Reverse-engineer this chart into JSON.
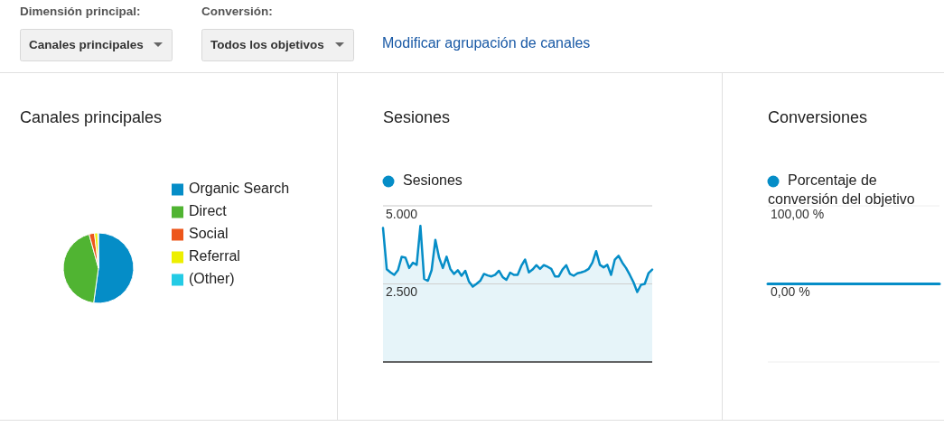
{
  "chart_data": [
    {
      "type": "other",
      "annotations": [
        "Dimensión principal:",
        "Canales principales",
        "Conversión:",
        "Todos los objetivos",
        "Modificar agrupación de canales"
      ]
    },
    {
      "type": "pie",
      "title": "Canales principales",
      "categories": [
        "Organic Search",
        "Direct",
        "Social",
        "Referral",
        "(Other)"
      ],
      "values": [
        52.2,
        43.5,
        2.5,
        1.5,
        0.3
      ],
      "colors": [
        "#058dc7",
        "#50b432",
        "#ed561b",
        "#edef00",
        "#24cbe5"
      ],
      "legend": "right"
    },
    {
      "type": "area",
      "title": "Sesiones",
      "categories": [
        null,
        null,
        null,
        null,
        null,
        null,
        null,
        null,
        null,
        null,
        null,
        null,
        null,
        null,
        null,
        null,
        null,
        null,
        null,
        null,
        null,
        null,
        null,
        null,
        null,
        null,
        null,
        null,
        null,
        null,
        null,
        null,
        null,
        null,
        null,
        null,
        null,
        null,
        null,
        null,
        null,
        null,
        null,
        null,
        null,
        null,
        null,
        null,
        null,
        null,
        null,
        null,
        null,
        null,
        null,
        null,
        null,
        null,
        null,
        null,
        null,
        null,
        null,
        null,
        null,
        null,
        null,
        null,
        null,
        null,
        null,
        null,
        null
      ],
      "series": [
        {
          "name": "Sesiones",
          "color": "#058dc7",
          "values": [
            4290,
            2970,
            2870,
            2790,
            2940,
            3370,
            3340,
            3010,
            3180,
            3110,
            4360,
            2660,
            2600,
            2940,
            3910,
            3340,
            3010,
            3370,
            2980,
            2820,
            2940,
            2760,
            2920,
            2570,
            2410,
            2500,
            2600,
            2820,
            2770,
            2740,
            2790,
            2920,
            2720,
            2630,
            2860,
            2790,
            2790,
            3080,
            3280,
            2870,
            2960,
            3100,
            2980,
            3100,
            3050,
            2980,
            2740,
            2740,
            2960,
            3100,
            2820,
            2760,
            2840,
            2870,
            2910,
            2980,
            3180,
            3550,
            3110,
            3030,
            3110,
            2790,
            3280,
            3400,
            3180,
            3010,
            2790,
            2550,
            2240,
            2470,
            2500,
            2840,
            2960
          ]
        }
      ],
      "ylim": [
        0,
        5000
      ],
      "yticks": [
        {
          "value": 2500,
          "label": "2.500"
        },
        {
          "value": 5000,
          "label": "5.000"
        }
      ],
      "grid": true,
      "legend": "top left",
      "tick_labels": "y"
    },
    {
      "type": "line",
      "title": "Conversiones",
      "categories": [
        null,
        null,
        null,
        null,
        null,
        null,
        null,
        null,
        null,
        null,
        null,
        null,
        null,
        null,
        null,
        null,
        null,
        null,
        null,
        null,
        null,
        null,
        null,
        null,
        null,
        null,
        null,
        null,
        null,
        null,
        null,
        null,
        null,
        null,
        null,
        null,
        null,
        null,
        null,
        null,
        null,
        null,
        null,
        null,
        null,
        null,
        null,
        null,
        null,
        null,
        null,
        null,
        null,
        null,
        null,
        null,
        null,
        null,
        null,
        null,
        null,
        null,
        null,
        null,
        null,
        null,
        null,
        null,
        null,
        null,
        null,
        null,
        null
      ],
      "series": [
        {
          "name": "Porcentaje de conversión del objetivo",
          "color": "#058dc7",
          "values": [
            0,
            0,
            0,
            0,
            0,
            0,
            0,
            0,
            0,
            0,
            0,
            0,
            0,
            0,
            0,
            0,
            0,
            0,
            0,
            0,
            0,
            0,
            0,
            0,
            0,
            0,
            0,
            0,
            0,
            0,
            0,
            0,
            0,
            0,
            0,
            0,
            0,
            0,
            0,
            0,
            0,
            0,
            0,
            0,
            0,
            0,
            0,
            0,
            0,
            0,
            0,
            0,
            0,
            0,
            0,
            0,
            0,
            0,
            0,
            0,
            0,
            0,
            0,
            0,
            0,
            0,
            0,
            0,
            0,
            0,
            0,
            0,
            0
          ]
        }
      ],
      "ylim": [
        -100,
        100
      ],
      "yticks": [
        {
          "value": 0,
          "label": "0,00 %"
        },
        {
          "value": 100,
          "label": "100,00 %"
        }
      ],
      "legend": "top left",
      "tick_labels": "y"
    }
  ]
}
